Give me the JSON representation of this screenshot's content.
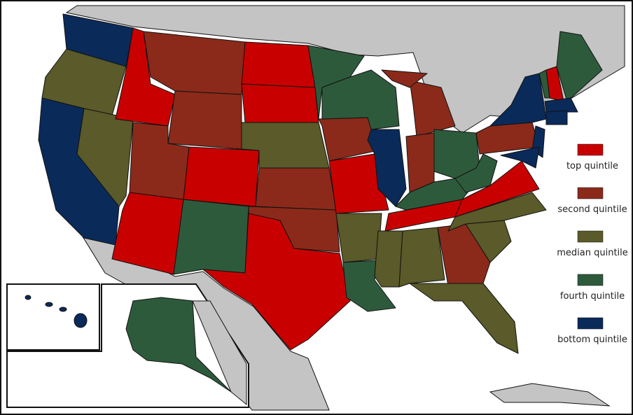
{
  "legend": [
    {
      "label": "top quintile",
      "color": "#c80000"
    },
    {
      "label": "second quintile",
      "color": "#8b2a1a"
    },
    {
      "label": "median quintile",
      "color": "#5a5a2a"
    },
    {
      "label": "fourth quintile",
      "color": "#2e5a3c"
    },
    {
      "label": "bottom quintile",
      "color": "#0a2a5a"
    }
  ]
}
